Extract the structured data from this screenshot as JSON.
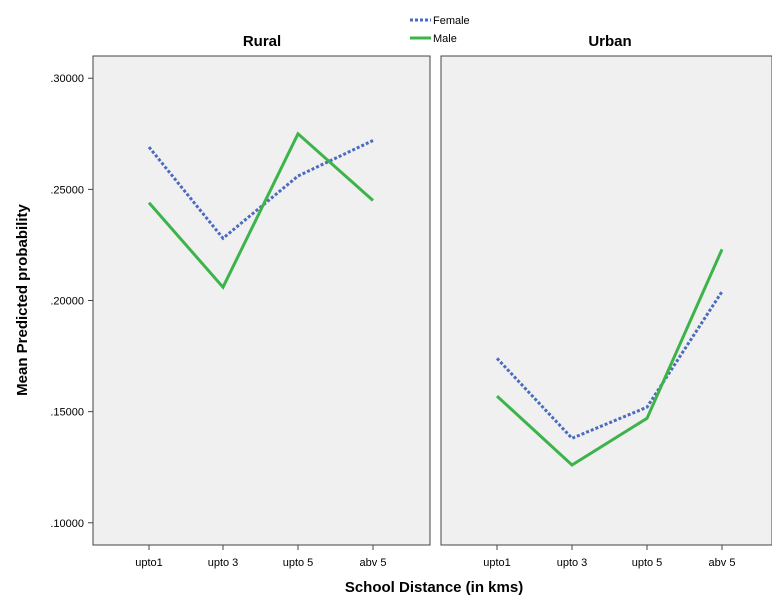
{
  "chart_data": {
    "type": "line",
    "xlabel": "School Distance (in kms)",
    "ylabel": "Mean Predicted probability",
    "categories": [
      "upto1",
      "upto 3",
      "upto 5",
      "abv 5"
    ],
    "ylim": [
      0.09,
      0.31
    ],
    "yticks": [
      ".10000",
      ".15000",
      ".20000",
      ".25000",
      ".30000"
    ],
    "ytick_values": [
      0.1,
      0.15,
      0.2,
      0.25,
      0.3
    ],
    "legend": {
      "position": "top-center",
      "entries": [
        {
          "name": "Female",
          "color": "#4a6bbf",
          "style": "dotted"
        },
        {
          "name": "Male",
          "color": "#3cb44b",
          "style": "solid"
        }
      ]
    },
    "panels": [
      {
        "title": "Rural",
        "series": [
          {
            "name": "Female",
            "values": [
              0.269,
              0.228,
              0.256,
              0.272
            ]
          },
          {
            "name": "Male",
            "values": [
              0.244,
              0.206,
              0.275,
              0.245
            ]
          }
        ]
      },
      {
        "title": "Urban",
        "series": [
          {
            "name": "Female",
            "values": [
              0.174,
              0.138,
              0.152,
              0.204
            ]
          },
          {
            "name": "Male",
            "values": [
              0.157,
              0.126,
              0.147,
              0.223
            ]
          }
        ]
      }
    ]
  }
}
